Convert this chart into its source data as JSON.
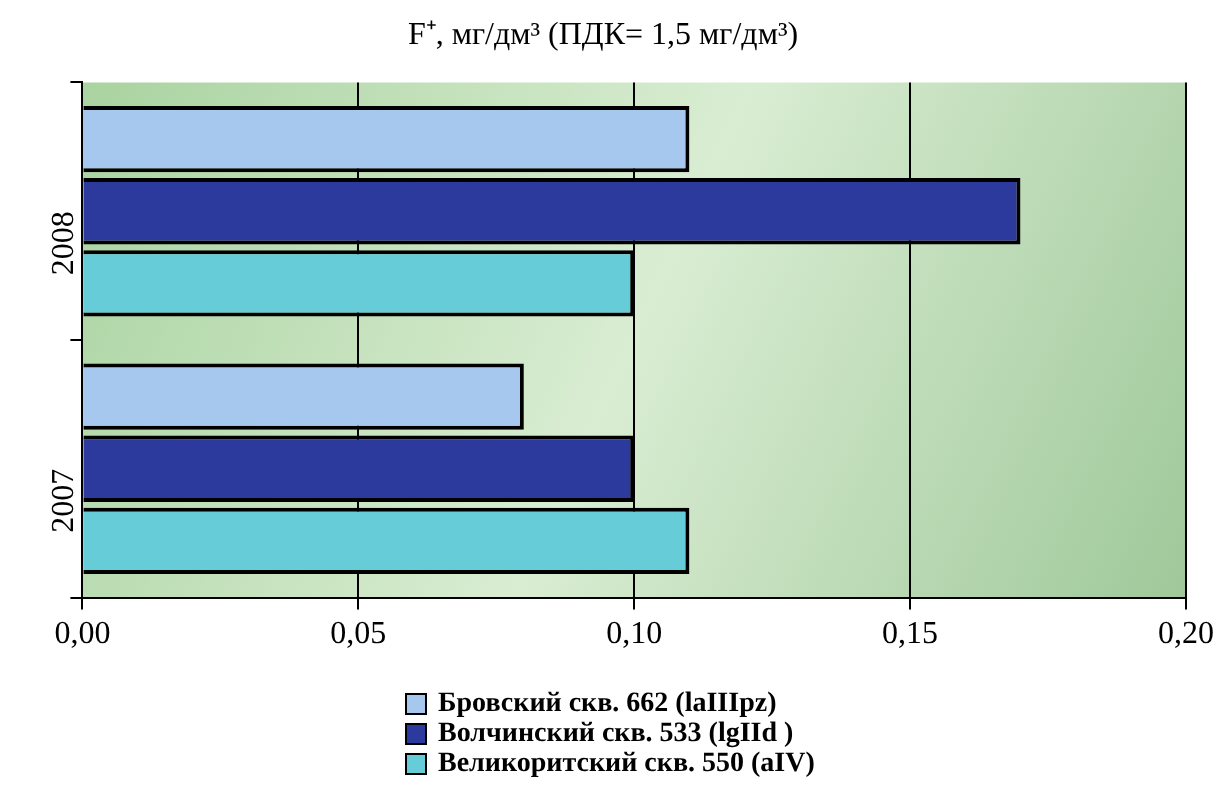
{
  "chart_data": {
    "type": "bar",
    "orientation": "horizontal",
    "title": "F⁺, мг/дм³ (ПДК= 1,5 мг/дм³)",
    "categories": [
      "2008",
      "2007"
    ],
    "series": [
      {
        "name": "Бровский скв. 662 (laIIIpz)",
        "color": "#a6c8ee",
        "values": [
          0.11,
          0.08
        ]
      },
      {
        "name": "Волчинский скв. 533 (lgIId )",
        "color": "#2b3a9c",
        "values": [
          0.17,
          0.1
        ]
      },
      {
        "name": "Великоритский скв. 550 (aIV)",
        "color": "#66cdd8",
        "values": [
          0.1,
          0.11
        ]
      }
    ],
    "xlim": [
      0,
      0.2
    ],
    "xticks": [
      {
        "value": 0,
        "label": "0,00"
      },
      {
        "value": 0.05,
        "label": "0,05"
      },
      {
        "value": 0.1,
        "label": "0,10"
      },
      {
        "value": 0.15,
        "label": "0,15"
      },
      {
        "value": 0.2,
        "label": "0,20"
      }
    ],
    "grid": "x",
    "legend": "bottom"
  }
}
